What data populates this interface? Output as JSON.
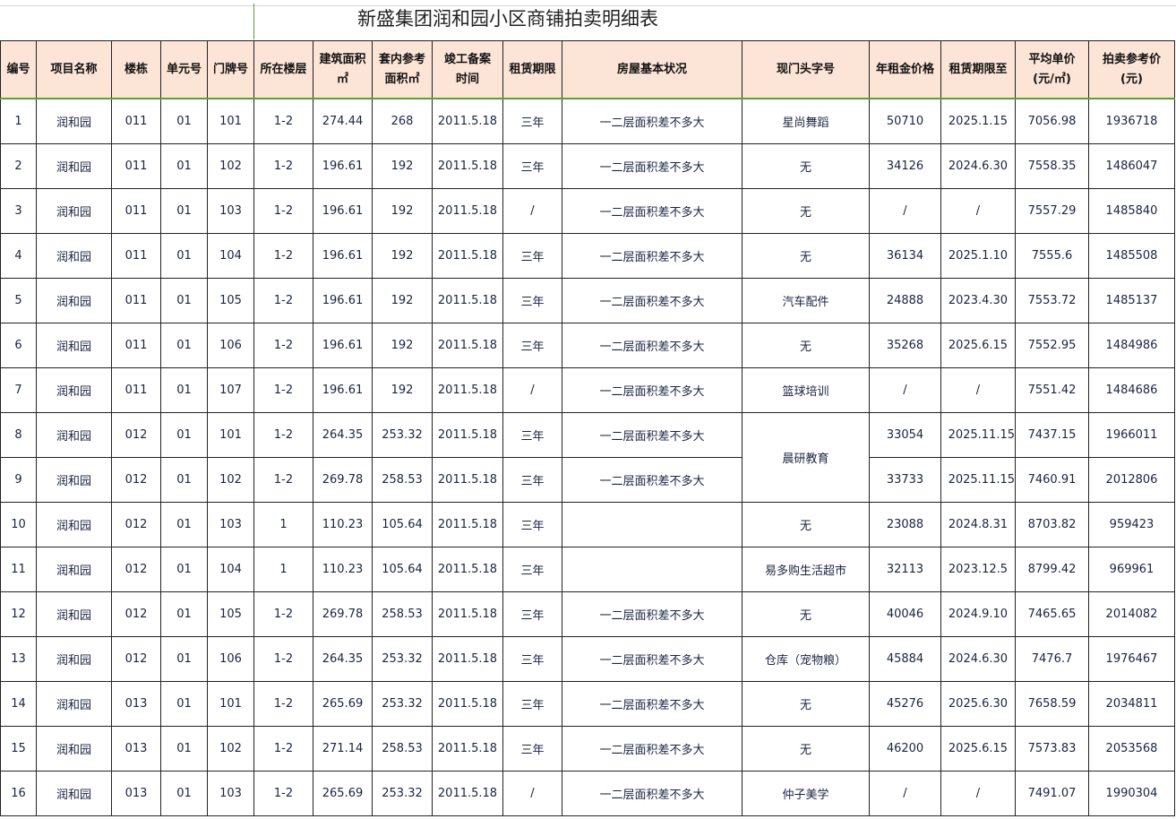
{
  "title": "新盛集团润和园小区商铺拍卖明细表",
  "headers": [
    [
      "编号"
    ],
    [
      "项目名称"
    ],
    [
      "楼栋"
    ],
    [
      "单元号"
    ],
    [
      "门牌号"
    ],
    [
      "所在楼层"
    ],
    [
      "建筑面积",
      "㎡"
    ],
    [
      "套内参考",
      "面积㎡"
    ],
    [
      "竣工备案",
      "时间"
    ],
    [
      "租赁期限"
    ],
    [
      "房屋基本状况"
    ],
    [
      "现门头字号"
    ],
    [
      "年租金价格"
    ],
    [
      "租赁期限至"
    ],
    [
      "平均单价",
      "(元/㎡)"
    ],
    [
      "拍卖参考价",
      "(元)"
    ]
  ],
  "rows": [
    [
      "1",
      "润和园",
      "011",
      "01",
      "101",
      "1-2",
      "274.44",
      "268",
      "2011.5.18",
      "三年",
      "一二层面积差不多大",
      "星尚舞蹈",
      "50710",
      "2025.1.15",
      "7056.98",
      "1936718"
    ],
    [
      "2",
      "润和园",
      "011",
      "01",
      "102",
      "1-2",
      "196.61",
      "192",
      "2011.5.18",
      "三年",
      "一二层面积差不多大",
      "无",
      "34126",
      "2024.6.30",
      "7558.35",
      "1486047"
    ],
    [
      "3",
      "润和园",
      "011",
      "01",
      "103",
      "1-2",
      "196.61",
      "192",
      "2011.5.18",
      "/",
      "一二层面积差不多大",
      "无",
      "/",
      "/",
      "7557.29",
      "1485840"
    ],
    [
      "4",
      "润和园",
      "011",
      "01",
      "104",
      "1-2",
      "196.61",
      "192",
      "2011.5.18",
      "三年",
      "一二层面积差不多大",
      "无",
      "36134",
      "2025.1.10",
      "7555.6",
      "1485508"
    ],
    [
      "5",
      "润和园",
      "011",
      "01",
      "105",
      "1-2",
      "196.61",
      "192",
      "2011.5.18",
      "三年",
      "一二层面积差不多大",
      "汽车配件",
      "24888",
      "2023.4.30",
      "7553.72",
      "1485137"
    ],
    [
      "6",
      "润和园",
      "011",
      "01",
      "106",
      "1-2",
      "196.61",
      "192",
      "2011.5.18",
      "三年",
      "一二层面积差不多大",
      "无",
      "35268",
      "2025.6.15",
      "7552.95",
      "1484986"
    ],
    [
      "7",
      "润和园",
      "011",
      "01",
      "107",
      "1-2",
      "196.61",
      "192",
      "2011.5.18",
      "/",
      "一二层面积差不多大",
      "篮球培训",
      "/",
      "/",
      "7551.42",
      "1484686"
    ],
    [
      "8",
      "润和园",
      "012",
      "01",
      "101",
      "1-2",
      "264.35",
      "253.32",
      "2011.5.18",
      "三年",
      "一二层面积差不多大",
      "晨研教育",
      "33054",
      "2025.11.15",
      "7437.15",
      "1966011"
    ],
    [
      "9",
      "润和园",
      "012",
      "01",
      "102",
      "1-2",
      "269.78",
      "258.53",
      "2011.5.18",
      "三年",
      "一二层面积差不多大",
      null,
      "33733",
      "2025.11.15",
      "7460.91",
      "2012806"
    ],
    [
      "10",
      "润和园",
      "012",
      "01",
      "103",
      "1",
      "110.23",
      "105.64",
      "2011.5.18",
      "三年",
      "",
      "无",
      "23088",
      "2024.8.31",
      "8703.82",
      "959423"
    ],
    [
      "11",
      "润和园",
      "012",
      "01",
      "104",
      "1",
      "110.23",
      "105.64",
      "2011.5.18",
      "三年",
      "",
      "易多购生活超市",
      "32113",
      "2023.12.5",
      "8799.42",
      "969961"
    ],
    [
      "12",
      "润和园",
      "012",
      "01",
      "105",
      "1-2",
      "269.78",
      "258.53",
      "2011.5.18",
      "三年",
      "一二层面积差不多大",
      "无",
      "40046",
      "2024.9.10",
      "7465.65",
      "2014082"
    ],
    [
      "13",
      "润和园",
      "012",
      "01",
      "106",
      "1-2",
      "264.35",
      "253.32",
      "2011.5.18",
      "三年",
      "一二层面积差不多大",
      "仓库（宠物粮）",
      "45884",
      "2024.6.30",
      "7476.7",
      "1976467"
    ],
    [
      "14",
      "润和园",
      "013",
      "01",
      "101",
      "1-2",
      "265.69",
      "253.32",
      "2011.5.18",
      "三年",
      "一二层面积差不多大",
      "无",
      "45276",
      "2025.6.30",
      "7658.59",
      "2034811"
    ],
    [
      "15",
      "润和园",
      "013",
      "01",
      "102",
      "1-2",
      "271.14",
      "258.53",
      "2011.5.18",
      "三年",
      "一二层面积差不多大",
      "无",
      "46200",
      "2025.6.15",
      "7573.83",
      "2053568"
    ],
    [
      "16",
      "润和园",
      "013",
      "01",
      "103",
      "1-2",
      "265.69",
      "253.32",
      "2011.5.18",
      "/",
      "一二层面积差不多大",
      "仲子美学",
      "/",
      "/",
      "7491.07",
      "1990304"
    ]
  ],
  "colors": {
    "header_bg": "#fce4d6",
    "grid": "#222222",
    "selection_border": "#5aa02c"
  }
}
